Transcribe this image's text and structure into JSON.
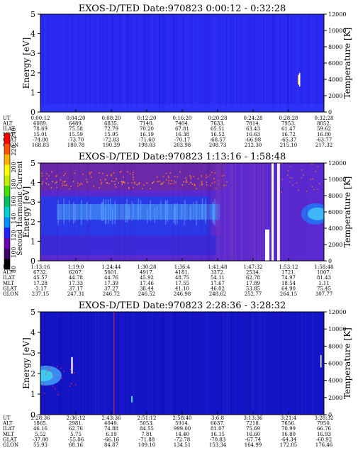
{
  "colors": {
    "background_blue": "#2a2af2",
    "deep_blue": "#1515c8",
    "band_blue": "#3a78f0",
    "purple": "#5a2ad0",
    "violet": "#6a2aa8",
    "red_spot": "#ff2a2a",
    "white": "#ffffff"
  },
  "colorbar": {
    "label": "Second Harmonic Current",
    "ticks": [
      "80",
      "100",
      "120",
      "140",
      "160",
      "180",
      "200",
      "220",
      "240"
    ],
    "colors": [
      "#000000",
      "#3a0066",
      "#6a00b0",
      "#2020ff",
      "#0090ff",
      "#00d0d0",
      "#00c060",
      "#40e000",
      "#c0f000",
      "#ffff00",
      "#ffb000",
      "#ff5000",
      "#ff0000"
    ]
  },
  "chart_data": [
    {
      "type": "heatmap",
      "title": "EXOS-D/TED    Date:970823  0:00:12 - 0:32:28",
      "ylabel": "Energy [eV]",
      "y2label": "Temperature [K]",
      "ylim": [
        0,
        5
      ],
      "y2lim": [
        0,
        12000
      ],
      "yticks": [
        "0",
        "1",
        "2",
        "3",
        "4",
        "5"
      ],
      "y2ticks": [
        "0",
        "2000",
        "4000",
        "6000",
        "8000",
        "10000",
        "12000"
      ],
      "rows": [
        {
          "label": "UT",
          "values": [
            "0:00:12",
            "0:04:20",
            "0:08:20",
            "0:12:20",
            "0:16:20",
            "0:20:28",
            "0:24:28",
            "0:28:28",
            "0:32:28"
          ]
        },
        {
          "label": "ALT",
          "values": [
            "6089.",
            "6489.",
            "6835.",
            "7140.",
            "7404.",
            "7633.",
            "7814.",
            "7953.",
            "8052."
          ]
        },
        {
          "label": "ILAT",
          "values": [
            "78.69",
            "75.58",
            "72.79",
            "70.20",
            "67.81",
            "65.51",
            "63.43",
            "61.47",
            "59.62"
          ]
        },
        {
          "label": "MLT",
          "values": [
            "15.01",
            "15.59",
            "15.95",
            "16.19",
            "16.38",
            "16.52",
            "16.63",
            "16.72",
            "16.80"
          ]
        },
        {
          "label": "GLAT",
          "values": [
            "-74.00",
            "-73.70",
            "-72.83",
            "-71.60",
            "-70.17",
            "-68.57",
            "-66.98",
            "-65.37",
            "-63.77"
          ]
        },
        {
          "label": "GLON",
          "values": [
            "168.83",
            "180.78",
            "190.39",
            "198.03",
            "203.98",
            "208.73",
            "212.30",
            "215.10",
            "217.32"
          ]
        }
      ]
    },
    {
      "type": "heatmap",
      "title": "EXOS-D/TED    Date:970823  1:13:16 - 1:58:48",
      "ylabel": "Energy [eV]",
      "y2label": "Temperature [K]",
      "ylim": [
        0,
        5
      ],
      "y2lim": [
        0,
        12000
      ],
      "yticks": [
        "0",
        "1",
        "2",
        "3",
        "4",
        "5"
      ],
      "y2ticks": [
        "0",
        "2000",
        "4000",
        "6000",
        "8000",
        "10000",
        "12000"
      ],
      "rows": [
        {
          "label": "UT",
          "values": [
            "1:13:16",
            "1:19:0",
            "1:24:44",
            "1:30:28",
            "1:36:4",
            "1:41:48",
            "1:47:32",
            "1:53:12",
            "1:58:48"
          ]
        },
        {
          "label": "ALT",
          "values": [
            "6732.",
            "6207.",
            "5601.",
            "4917.",
            "4181.",
            "3372.",
            "2534.",
            "1721.",
            "1007."
          ]
        },
        {
          "label": "ILAT",
          "values": [
            "45.57",
            "44.78",
            "44.76",
            "45.92",
            "48.75",
            "54.11",
            "62.78",
            "74.97",
            "81.43"
          ]
        },
        {
          "label": "MLT",
          "values": [
            "17.28",
            "17.33",
            "17.39",
            "17.46",
            "17.55",
            "17.67",
            "17.89",
            "18.54",
            "1.11"
          ]
        },
        {
          "label": "GLAT",
          "values": [
            "-3.17",
            "37.17",
            "37.27",
            "38.44",
            "41.10",
            "46.02",
            "53.85",
            "64.90",
            "75.45"
          ]
        },
        {
          "label": "GLON",
          "values": [
            "237.15",
            "247.31",
            "246.72",
            "246.52",
            "246.98",
            "248.62",
            "252.77",
            "264.15",
            "307.77"
          ]
        }
      ]
    },
    {
      "type": "heatmap",
      "title": "EXOS-D/TED    Date:970823  2:28:36 - 3:28:32",
      "ylabel": "Energy [eV]",
      "y2label": "Temperature [K]",
      "ylim": [
        0,
        5
      ],
      "y2lim": [
        0,
        12000
      ],
      "yticks": [
        "0",
        "1",
        "2",
        "3",
        "4",
        "5"
      ],
      "y2ticks": [
        "0",
        "2000",
        "4000",
        "6000",
        "8000",
        "10000",
        "12000"
      ],
      "rows": [
        {
          "label": "UT",
          "values": [
            "2:28:36",
            "2:36:12",
            "2:43:36",
            "2:51:12",
            "2:58:40",
            "3:6:8",
            "3:13:36",
            "3:21:4",
            "3:28:32"
          ]
        },
        {
          "label": "ALT",
          "values": [
            "1865.",
            "2981.",
            "4049.",
            "5053.",
            "5914.",
            "6637.",
            "7218.",
            "7656.",
            "7950."
          ]
        },
        {
          "label": "ILAT",
          "values": [
            "46.16",
            "62.76",
            "74.88",
            "84.55",
            "999.00",
            "81.07",
            "75.69",
            "70.99",
            "66.76"
          ]
        },
        {
          "label": "MLT",
          "values": [
            "5.52",
            "5.75",
            "6.19",
            "7.81",
            "14.40",
            "16.15",
            "16.60",
            "16.80",
            "16.93"
          ]
        },
        {
          "label": "GLAT",
          "values": [
            "-37.00",
            "-55.06",
            "-66.16",
            "-71.88",
            "-72.78",
            "-70.83",
            "-67.74",
            "-64.34",
            "-60.92"
          ]
        },
        {
          "label": "GLON",
          "values": [
            "55.93",
            "68.16",
            "84.87",
            "109.10",
            "134.51",
            "153.34",
            "164.99",
            "172.05",
            "176.46"
          ]
        }
      ]
    }
  ]
}
